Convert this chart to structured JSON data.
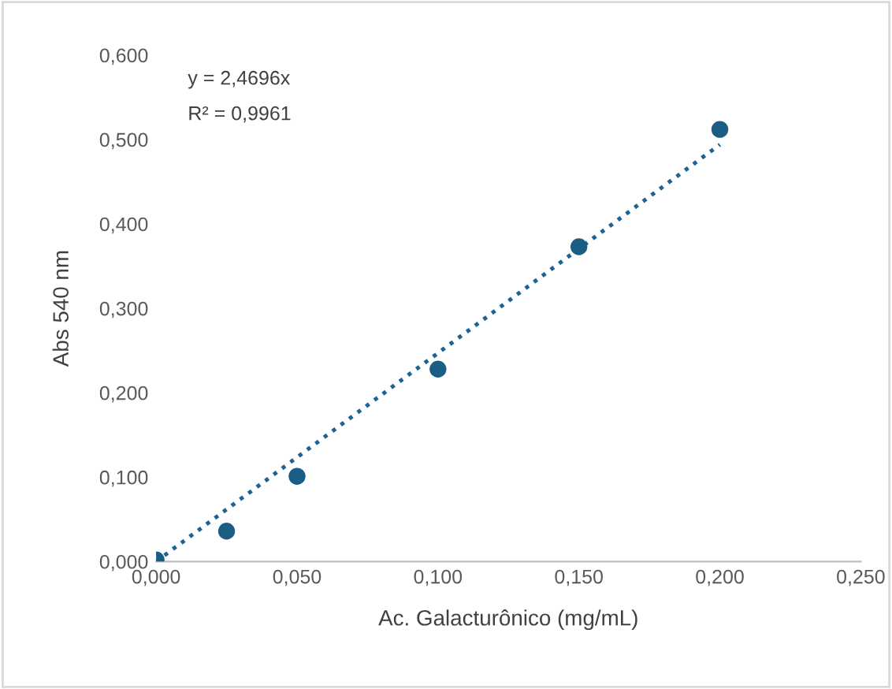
{
  "chart_data": {
    "type": "scatter",
    "xlabel": "Ac. Galacturônico (mg/mL)",
    "ylabel": "Abs 540 nm",
    "annotations": [
      "y = 2,4696x",
      "R² = 0,9961"
    ],
    "series": [
      {
        "color": "#1b5e85",
        "marker": "circle",
        "x": [
          0,
          0.025,
          0.05,
          0.1,
          0.15,
          0.2
        ],
        "values": [
          0.002,
          0.036,
          0.101,
          0.228,
          0.373,
          0.512
        ]
      },
      {
        "type": "line",
        "color": "#1f6391",
        "line_style": "dotted",
        "x": [
          0,
          0.2
        ],
        "values": [
          0,
          0.494
        ]
      }
    ],
    "xlim": [
      0,
      0.25
    ],
    "ylim": [
      0,
      0.6
    ],
    "xticks": [
      {
        "value": 0,
        "label": "0,000"
      },
      {
        "value": 0.05,
        "label": "0,050"
      },
      {
        "value": 0.1,
        "label": "0,100"
      },
      {
        "value": 0.15,
        "label": "0,150"
      },
      {
        "value": 0.2,
        "label": "0,200"
      },
      {
        "value": 0.25,
        "label": "0,250"
      }
    ],
    "yticks": [
      {
        "value": 0,
        "label": "0,000"
      },
      {
        "value": 0.1,
        "label": "0,100"
      },
      {
        "value": 0.2,
        "label": "0,200"
      },
      {
        "value": 0.3,
        "label": "0,300"
      },
      {
        "value": 0.4,
        "label": "0,400"
      },
      {
        "value": 0.5,
        "label": "0,500"
      },
      {
        "value": 0.6,
        "label": "0,600"
      }
    ],
    "grid": false
  }
}
